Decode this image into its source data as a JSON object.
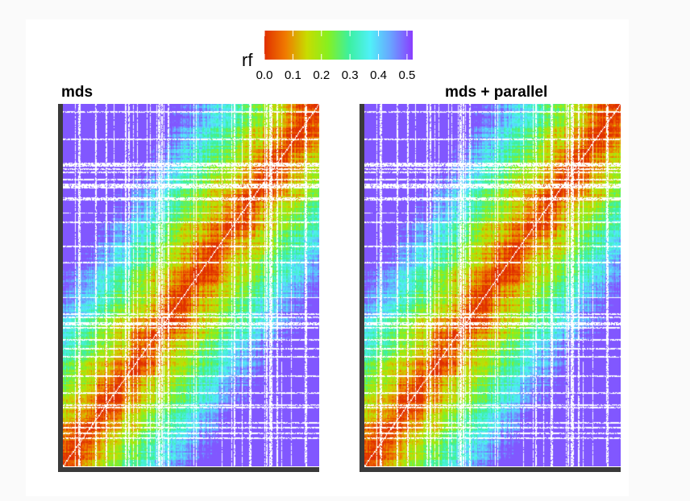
{
  "chart_data": {
    "type": "heatmap",
    "legend": {
      "title": "rf",
      "ticks": [
        "0.0",
        "0.1",
        "0.2",
        "0.3",
        "0.4",
        "0.5"
      ],
      "range": [
        0.0,
        0.52
      ],
      "placement": "top-center",
      "colors": [
        "#e03000",
        "#f07a00",
        "#c8dc00",
        "#86f020",
        "#3cf0a0",
        "#50f0f8",
        "#6aa0ff",
        "#8a3cff"
      ]
    },
    "panels": [
      {
        "title": "mds",
        "matrix": "ordered pairwise rf distances, low values along diagonal blocks"
      },
      {
        "title": "mds + parallel",
        "matrix": "ordered pairwise rf distances, low values along diagonal blocks"
      }
    ],
    "grid": false
  }
}
